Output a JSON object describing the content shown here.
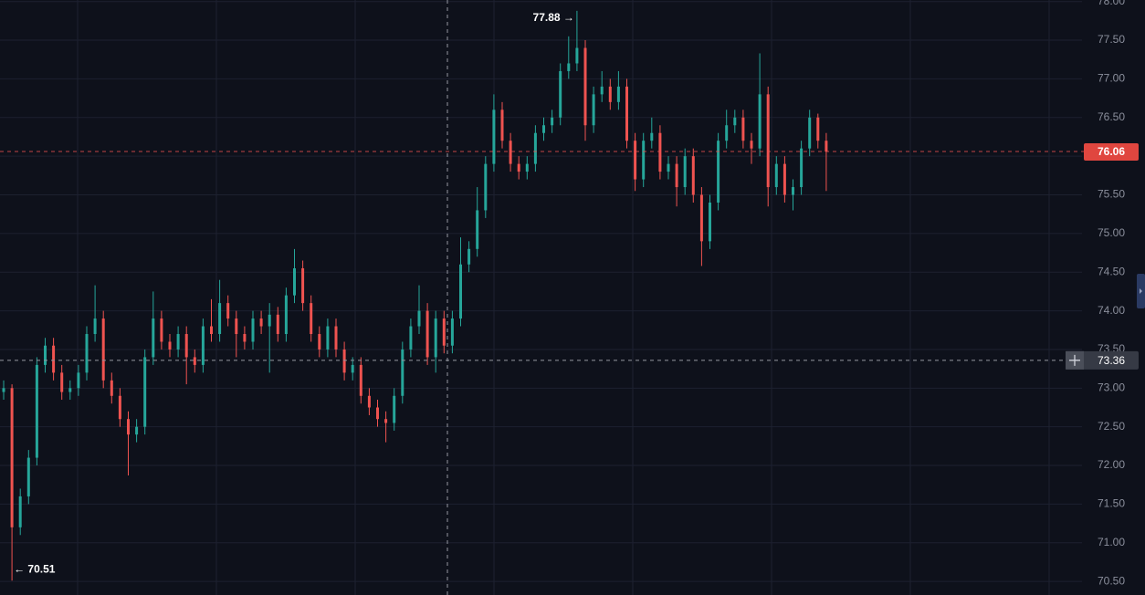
{
  "chart_data": {
    "type": "candlestick",
    "up_color": "#26a69a",
    "down_color": "#ef5350",
    "grid": true,
    "ylim": [
      70.4,
      78.02
    ],
    "yticks": [
      {
        "value": 70.5,
        "label": "70.50"
      },
      {
        "value": 71,
        "label": "71.00"
      },
      {
        "value": 71.5,
        "label": "71.50"
      },
      {
        "value": 72,
        "label": "72.00"
      },
      {
        "value": 72.5,
        "label": "72.50"
      },
      {
        "value": 73,
        "label": "73.00"
      },
      {
        "value": 73.5,
        "label": "73.50"
      },
      {
        "value": 74,
        "label": "74.00"
      },
      {
        "value": 74.5,
        "label": "74.50"
      },
      {
        "value": 75,
        "label": "75.00"
      },
      {
        "value": 75.5,
        "label": "75.50"
      },
      {
        "value": 76,
        "label": "76.00"
      },
      {
        "value": 76.5,
        "label": "76.50"
      },
      {
        "value": 77,
        "label": "77.00"
      },
      {
        "value": 77.5,
        "label": "77.50"
      },
      {
        "value": 78,
        "label": "78.00"
      }
    ],
    "open": [
      72.95,
      73.0,
      71.2,
      71.6,
      72.1,
      73.3,
      73.55,
      73.2,
      72.95,
      73.0,
      73.2,
      73.7,
      73.9,
      73.1,
      72.9,
      72.6,
      72.4,
      72.5,
      73.4,
      73.9,
      73.6,
      73.5,
      73.7,
      73.4,
      73.3,
      73.8,
      73.7,
      74.1,
      73.9,
      73.7,
      73.6,
      73.9,
      73.8,
      73.95,
      73.7,
      74.2,
      74.55,
      74.1,
      73.7,
      73.5,
      73.8,
      73.5,
      73.2,
      73.3,
      72.9,
      72.75,
      72.6,
      72.55,
      72.9,
      73.5,
      73.8,
      74.0,
      73.4,
      73.9,
      73.55,
      73.9,
      74.6,
      74.8,
      75.3,
      75.9,
      76.6,
      76.2,
      75.9,
      75.8,
      75.9,
      76.3,
      76.4,
      76.5,
      77.1,
      77.2,
      77.4,
      76.4,
      76.8,
      76.9,
      76.7,
      76.9,
      76.2,
      75.7,
      76.2,
      76.3,
      75.8,
      75.9,
      75.6,
      76.0,
      75.5,
      74.9,
      75.4,
      76.2,
      76.4,
      76.5,
      76.2,
      76.1,
      76.8,
      75.6,
      75.9,
      75.5,
      75.6,
      76.1,
      76.5,
      76.2
    ],
    "high": [
      73.1,
      73.05,
      71.7,
      72.2,
      73.4,
      73.65,
      73.65,
      73.3,
      73.1,
      73.3,
      73.8,
      74.33,
      74.0,
      73.2,
      73.0,
      72.7,
      72.6,
      73.5,
      74.25,
      74.0,
      73.7,
      73.8,
      73.8,
      73.5,
      73.9,
      74.15,
      74.4,
      74.2,
      74.0,
      73.8,
      74.0,
      74.0,
      74.1,
      74.05,
      74.3,
      74.8,
      74.65,
      74.2,
      73.8,
      73.9,
      73.9,
      73.6,
      73.4,
      73.4,
      73.0,
      72.85,
      72.7,
      73.0,
      73.6,
      73.9,
      74.33,
      74.1,
      74.0,
      74.0,
      74.0,
      74.95,
      74.9,
      75.6,
      76.0,
      76.8,
      76.7,
      76.3,
      76.0,
      76.0,
      76.4,
      76.5,
      76.6,
      77.2,
      77.55,
      77.88,
      77.5,
      76.9,
      77.1,
      77.0,
      77.1,
      77.0,
      76.3,
      76.3,
      76.5,
      76.4,
      76.0,
      76.0,
      76.1,
      76.1,
      75.6,
      75.5,
      76.3,
      76.6,
      76.6,
      76.6,
      76.3,
      77.33,
      76.9,
      76.0,
      76.0,
      75.7,
      76.2,
      76.6,
      76.55,
      76.3
    ],
    "low": [
      72.85,
      70.51,
      71.1,
      71.5,
      72.0,
      73.2,
      73.1,
      72.85,
      72.85,
      72.9,
      73.1,
      73.6,
      73.0,
      72.8,
      72.5,
      71.87,
      72.3,
      72.4,
      73.3,
      73.5,
      73.4,
      73.4,
      73.05,
      73.2,
      73.2,
      73.6,
      73.6,
      73.8,
      73.4,
      73.5,
      73.5,
      73.7,
      73.2,
      73.6,
      73.6,
      74.1,
      74.0,
      73.6,
      73.4,
      73.4,
      73.4,
      73.1,
      73.1,
      72.8,
      72.65,
      72.5,
      72.3,
      72.45,
      72.8,
      73.4,
      73.7,
      73.3,
      73.2,
      73.45,
      73.45,
      73.8,
      74.5,
      74.7,
      75.2,
      75.8,
      76.1,
      75.8,
      75.7,
      75.7,
      75.8,
      76.2,
      76.3,
      76.4,
      77.0,
      77.1,
      76.2,
      76.3,
      76.7,
      76.6,
      76.6,
      76.1,
      75.55,
      75.6,
      76.1,
      75.7,
      75.7,
      75.35,
      75.5,
      75.4,
      74.58,
      74.8,
      75.3,
      76.1,
      76.3,
      76.1,
      75.9,
      76.0,
      75.35,
      75.5,
      75.4,
      75.3,
      75.5,
      76.0,
      76.1,
      75.55
    ],
    "close": [
      73.0,
      71.2,
      71.6,
      72.1,
      73.3,
      73.55,
      73.2,
      72.95,
      73.0,
      73.2,
      73.7,
      73.9,
      73.1,
      72.9,
      72.6,
      72.4,
      72.5,
      73.4,
      73.9,
      73.6,
      73.5,
      73.7,
      73.4,
      73.3,
      73.8,
      73.7,
      74.1,
      73.9,
      73.7,
      73.6,
      73.9,
      73.8,
      73.95,
      73.7,
      74.2,
      74.55,
      74.1,
      73.7,
      73.5,
      73.8,
      73.5,
      73.2,
      73.3,
      72.9,
      72.75,
      72.6,
      72.55,
      72.9,
      73.5,
      73.8,
      74.0,
      73.4,
      73.9,
      73.55,
      73.9,
      74.6,
      74.8,
      75.3,
      75.9,
      76.6,
      76.2,
      75.9,
      75.8,
      75.9,
      76.3,
      76.4,
      76.5,
      77.1,
      77.2,
      77.4,
      76.4,
      76.8,
      76.9,
      76.7,
      76.9,
      76.2,
      75.7,
      76.2,
      76.3,
      75.8,
      75.9,
      75.6,
      76.0,
      75.5,
      74.9,
      75.4,
      76.2,
      76.4,
      76.5,
      76.2,
      76.1,
      76.8,
      75.6,
      75.9,
      75.5,
      75.6,
      76.1,
      76.5,
      76.2,
      76.06
    ],
    "annotations": [
      {
        "value": 77.88,
        "label": "77.88 →"
      },
      {
        "value": 70.51,
        "label": "← 70.51"
      }
    ],
    "last_price": {
      "value": 76.06,
      "label": "76.06"
    },
    "crosshair": {
      "value": 73.36,
      "label": "73.36"
    }
  }
}
